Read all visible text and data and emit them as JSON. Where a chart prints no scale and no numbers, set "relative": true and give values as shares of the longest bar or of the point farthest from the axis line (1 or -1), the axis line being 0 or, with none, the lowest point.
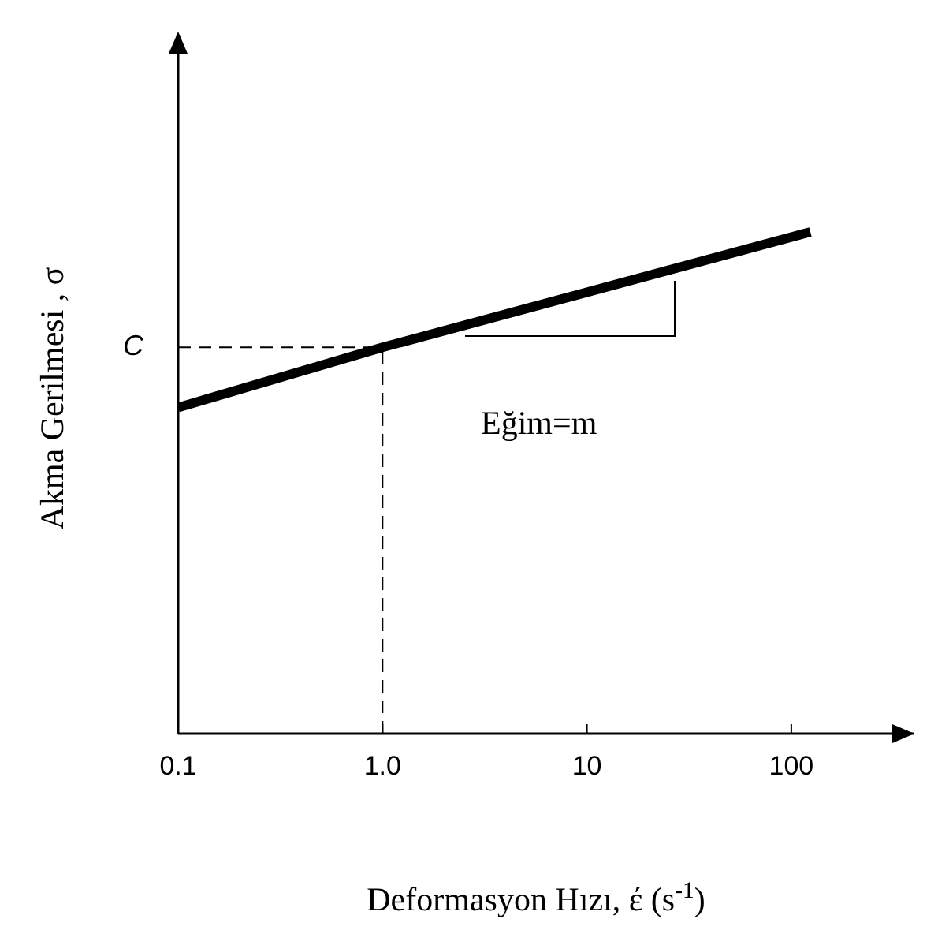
{
  "chart_data": {
    "type": "line",
    "relative": true,
    "log": "x",
    "xlabel": "Deformasyon Hızı, έ (s$^{-1}$)",
    "ylabel": "Akma Gerilmesi , σ",
    "x": [
      0.1,
      1,
      124
    ],
    "series": [
      {
        "color": "#000000",
        "values": [
          0.65,
          0.77,
          1
        ]
      }
    ],
    "xlim": [
      0.1,
      400
    ],
    "xticks": [
      {
        "value": 0.1,
        "label": "0.1"
      },
      {
        "value": 1,
        "label": "1.0"
      },
      10,
      100
    ],
    "ref_lines": [
      {
        "axis": "y",
        "value": 0.77,
        "label": "C",
        "line_style": "dashed"
      },
      {
        "axis": "x",
        "value": 1,
        "label": null,
        "line_style": "dashed"
      }
    ],
    "annotations": [
      "Eğim=m"
    ],
    "marker": "none",
    "line_style": "solid"
  }
}
